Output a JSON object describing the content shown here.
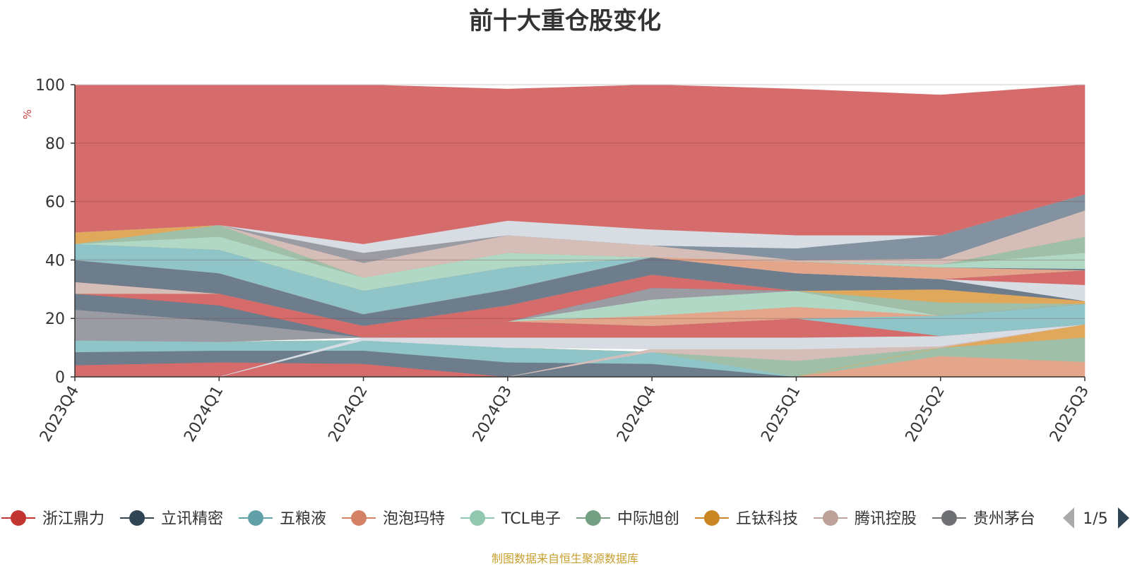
{
  "chart_data": {
    "type": "area",
    "title": "前十大重仓股变化",
    "ylabel": "%",
    "ylim": [
      0,
      100
    ],
    "yticks": [
      "0",
      "20",
      "40",
      "60",
      "80",
      "100"
    ],
    "categories": [
      "2023Q4",
      "2024Q1",
      "2024Q2",
      "2024Q3",
      "2024Q4",
      "2025Q1",
      "2025Q2",
      "2025Q3"
    ],
    "grid": true,
    "legend": {
      "position": "bottom",
      "page": "1/5",
      "items": [
        "浙江鼎力",
        "立讯精密",
        "五粮液",
        "泡泡玛特",
        "TCL电子",
        "中际旭创",
        "丘钛科技",
        "腾讯控股",
        "贵州茅台"
      ]
    },
    "layers": [
      {
        "color": "#d66b6b",
        "values": [
          [
            0,
            4
          ],
          [
            0,
            5
          ],
          [
            0,
            4.5
          ],
          [
            0,
            0
          ],
          [
            0,
            0
          ],
          [
            0,
            0
          ],
          [
            0,
            0
          ],
          [
            0,
            0
          ]
        ]
      },
      {
        "color": "#6d7d8c",
        "values": [
          [
            4,
            8.5
          ],
          [
            5,
            9
          ],
          [
            4.5,
            9
          ],
          [
            0,
            5
          ],
          [
            0,
            4.5
          ],
          [
            0,
            0
          ],
          [
            0,
            0
          ],
          [
            0,
            0
          ]
        ]
      },
      {
        "color": "#8fc4c8",
        "values": [
          [
            8.5,
            12.5
          ],
          [
            9,
            12
          ],
          [
            9,
            12.5
          ],
          [
            5,
            10
          ],
          [
            4.5,
            8.5
          ],
          [
            0,
            0
          ],
          [
            0,
            0
          ],
          [
            0,
            0
          ]
        ]
      },
      {
        "color": "#a0bfa8",
        "values": [
          [
            12.5,
            12.5
          ],
          [
            12,
            12
          ],
          [
            12.5,
            12.5
          ],
          [
            10,
            10
          ],
          [
            8.5,
            8.5
          ],
          [
            0,
            5.5
          ],
          [
            7,
            10
          ],
          [
            5,
            13.5
          ]
        ]
      },
      {
        "color": "#e3a68a",
        "values": [
          [
            0,
            0
          ],
          [
            0,
            0
          ],
          [
            0,
            0
          ],
          [
            0,
            0
          ],
          [
            0,
            0
          ],
          [
            0,
            0
          ],
          [
            0,
            7
          ],
          [
            0,
            5
          ]
        ]
      },
      {
        "color": "#b0d8c5",
        "values": [
          [
            0,
            0
          ],
          [
            0,
            0
          ],
          [
            0,
            0
          ],
          [
            0,
            0
          ],
          [
            0,
            0
          ],
          [
            0,
            0
          ],
          [
            0,
            0
          ],
          [
            0,
            0
          ]
        ]
      },
      {
        "color": "#e0a85a",
        "values": [
          [
            0,
            0
          ],
          [
            0,
            0
          ],
          [
            0,
            0
          ],
          [
            0,
            0
          ],
          [
            0,
            0
          ],
          [
            0,
            0
          ],
          [
            10,
            10
          ],
          [
            13.5,
            18
          ]
        ]
      },
      {
        "color": "#d5bdb8",
        "values": [
          [
            0,
            0
          ],
          [
            0,
            0
          ],
          [
            0,
            0
          ],
          [
            0,
            0
          ],
          [
            8.5,
            9.5
          ],
          [
            5.5,
            9.5
          ],
          [
            10,
            10.5
          ],
          [
            18,
            18
          ]
        ]
      },
      {
        "color": "#d7dde3",
        "values": [
          [
            0,
            0
          ],
          [
            0,
            0
          ],
          [
            12.5,
            13.5
          ],
          [
            10,
            13.5
          ],
          [
            9.5,
            13.5
          ],
          [
            9.5,
            13.5
          ],
          [
            10.5,
            14
          ],
          [
            18,
            18
          ]
        ]
      },
      {
        "color": "#9b9ba3",
        "values": [
          [
            12.5,
            23
          ],
          [
            12,
            19
          ],
          [
            13.5,
            13.5
          ],
          [
            13.5,
            13.5
          ],
          [
            13.5,
            13.5
          ],
          [
            13.5,
            13.5
          ],
          [
            14,
            14
          ],
          [
            18,
            18
          ]
        ]
      },
      {
        "color": "#d66b6b",
        "values": [
          [
            23,
            23
          ],
          [
            19,
            19
          ],
          [
            13.5,
            13.5
          ],
          [
            13.5,
            19
          ],
          [
            13.5,
            17.5
          ],
          [
            13.5,
            20
          ],
          [
            14,
            14
          ],
          [
            18,
            18
          ]
        ]
      },
      {
        "color": "#8fc4c8",
        "values": [
          [
            23,
            23
          ],
          [
            19,
            19
          ],
          [
            13.5,
            13.5
          ],
          [
            19,
            19
          ],
          [
            17.5,
            17.5
          ],
          [
            20,
            20
          ],
          [
            14,
            21
          ],
          [
            18,
            25
          ]
        ]
      },
      {
        "color": "#e3a68a",
        "values": [
          [
            23,
            23
          ],
          [
            19,
            19
          ],
          [
            13.5,
            13.5
          ],
          [
            19,
            19
          ],
          [
            17.5,
            21
          ],
          [
            20,
            24
          ],
          [
            21,
            21
          ],
          [
            25,
            25
          ]
        ]
      },
      {
        "color": "#b0d8c5",
        "values": [
          [
            23,
            23
          ],
          [
            19,
            19
          ],
          [
            13.5,
            13.5
          ],
          [
            19,
            19
          ],
          [
            21,
            26.5
          ],
          [
            24,
            29.5
          ],
          [
            21,
            21
          ],
          [
            25,
            25
          ]
        ]
      },
      {
        "color": "#9b9ba3",
        "values": [
          [
            23,
            23
          ],
          [
            19,
            19
          ],
          [
            13.5,
            13.5
          ],
          [
            19,
            19
          ],
          [
            26.5,
            30.5
          ],
          [
            29.5,
            29.5
          ],
          [
            21,
            21
          ],
          [
            25,
            25
          ]
        ]
      },
      {
        "color": "#6d7d8c",
        "values": [
          [
            23,
            28.5
          ],
          [
            19,
            24.5
          ],
          [
            13.5,
            13.5
          ],
          [
            19,
            19
          ],
          [
            30.5,
            30.5
          ],
          [
            29.5,
            29.5
          ],
          [
            21,
            21
          ],
          [
            25,
            25
          ]
        ]
      },
      {
        "color": "#d66b6b",
        "values": [
          [
            28.5,
            28.5
          ],
          [
            24.5,
            28.5
          ],
          [
            13.5,
            17.5
          ],
          [
            19,
            24.5
          ],
          [
            30.5,
            35
          ],
          [
            29.5,
            29.5
          ],
          [
            21,
            21
          ],
          [
            25,
            25
          ]
        ]
      },
      {
        "color": "#a0bfa8",
        "values": [
          [
            28.5,
            28.5
          ],
          [
            28.5,
            28.5
          ],
          [
            17.5,
            17.5
          ],
          [
            24.5,
            24.5
          ],
          [
            35,
            35
          ],
          [
            29.5,
            29.5
          ],
          [
            21,
            25.5
          ],
          [
            25,
            25
          ]
        ]
      },
      {
        "color": "#e0a85a",
        "values": [
          [
            28.5,
            28.5
          ],
          [
            28.5,
            28.5
          ],
          [
            17.5,
            17.5
          ],
          [
            24.5,
            24.5
          ],
          [
            35,
            35
          ],
          [
            29.5,
            29.5
          ],
          [
            25.5,
            30
          ],
          [
            25,
            26
          ]
        ]
      },
      {
        "color": "#d5bdb8",
        "values": [
          [
            28.5,
            32.5
          ],
          [
            28.5,
            28.5
          ],
          [
            17.5,
            17.5
          ],
          [
            24.5,
            24.5
          ],
          [
            35,
            35
          ],
          [
            29.5,
            29.5
          ],
          [
            30,
            30
          ],
          [
            26,
            26
          ]
        ]
      },
      {
        "color": "#d66b6b",
        "values": [
          [
            32.5,
            32.5
          ],
          [
            28.5,
            28.5
          ],
          [
            17.5,
            17.5
          ],
          [
            24.5,
            24.5
          ],
          [
            35,
            35
          ],
          [
            29.5,
            29.5
          ],
          [
            30,
            30
          ],
          [
            26,
            26
          ]
        ]
      },
      {
        "color": "#6d7d8c",
        "values": [
          [
            32.5,
            40
          ],
          [
            28.5,
            35.5
          ],
          [
            17.5,
            21.5
          ],
          [
            24.5,
            30
          ],
          [
            35,
            41
          ],
          [
            29.5,
            35.5
          ],
          [
            30,
            33.5
          ],
          [
            26,
            26
          ]
        ]
      },
      {
        "color": "#d7dde3",
        "values": [
          [
            40,
            40
          ],
          [
            35.5,
            35.5
          ],
          [
            21.5,
            21.5
          ],
          [
            30,
            30
          ],
          [
            41,
            41
          ],
          [
            35.5,
            35.5
          ],
          [
            33.5,
            33.5
          ],
          [
            26,
            31.5
          ]
        ]
      },
      {
        "color": "#d66b6b",
        "values": [
          [
            40,
            40
          ],
          [
            35.5,
            35.5
          ],
          [
            21.5,
            21.5
          ],
          [
            30,
            30
          ],
          [
            41,
            41
          ],
          [
            35.5,
            35.5
          ],
          [
            33.5,
            33.5
          ],
          [
            31.5,
            36.5
          ]
        ]
      },
      {
        "color": "#8fc4c8",
        "values": [
          [
            40,
            45.5
          ],
          [
            35.5,
            43.5
          ],
          [
            21.5,
            29.5
          ],
          [
            30,
            37.5
          ],
          [
            41,
            41
          ],
          [
            35.5,
            35.5
          ],
          [
            33.5,
            33.5
          ],
          [
            36.5,
            36.5
          ]
        ]
      },
      {
        "color": "#e3a68a",
        "values": [
          [
            45.5,
            45.5
          ],
          [
            43.5,
            43.5
          ],
          [
            29.5,
            29.5
          ],
          [
            37.5,
            37.5
          ],
          [
            41,
            41
          ],
          [
            35.5,
            39.5
          ],
          [
            33.5,
            37.5
          ],
          [
            36.5,
            36.5
          ]
        ]
      },
      {
        "color": "#6d7d8c",
        "values": [
          [
            45.5,
            45.5
          ],
          [
            43.5,
            43.5
          ],
          [
            29.5,
            29.5
          ],
          [
            37.5,
            37.5
          ],
          [
            41,
            41
          ],
          [
            39.5,
            39.5
          ],
          [
            37.5,
            37.5
          ],
          [
            36.5,
            37
          ]
        ]
      },
      {
        "color": "#b0d8c5",
        "values": [
          [
            45.5,
            45.5
          ],
          [
            43.5,
            48
          ],
          [
            29.5,
            34
          ],
          [
            37.5,
            42.5
          ],
          [
            41,
            41
          ],
          [
            39.5,
            39.5
          ],
          [
            37.5,
            38.5
          ],
          [
            37,
            42.5
          ]
        ]
      },
      {
        "color": "#a0bfa8",
        "values": [
          [
            45.5,
            45.5
          ],
          [
            48,
            52
          ],
          [
            34,
            34
          ],
          [
            42.5,
            42.5
          ],
          [
            41,
            41
          ],
          [
            39.5,
            39.5
          ],
          [
            38.5,
            38.5
          ],
          [
            42.5,
            48
          ]
        ]
      },
      {
        "color": "#e0a85a",
        "values": [
          [
            45.5,
            49.5
          ],
          [
            52,
            52
          ],
          [
            34,
            34
          ],
          [
            42.5,
            42.5
          ],
          [
            41,
            41
          ],
          [
            39.5,
            39.5
          ],
          [
            38.5,
            38.5
          ],
          [
            48,
            48
          ]
        ]
      },
      {
        "color": "#d5bdb8",
        "values": [
          [
            49.5,
            49.5
          ],
          [
            52,
            52
          ],
          [
            34,
            39
          ],
          [
            42.5,
            48.5
          ],
          [
            41,
            45
          ],
          [
            39.5,
            40
          ],
          [
            38.5,
            40.5
          ],
          [
            48,
            57
          ]
        ]
      },
      {
        "color": "#9b9ba3",
        "values": [
          [
            49.5,
            49.5
          ],
          [
            52,
            52
          ],
          [
            39,
            42.5
          ],
          [
            48.5,
            48.5
          ],
          [
            45,
            45
          ],
          [
            40,
            40
          ],
          [
            40.5,
            40.5
          ],
          [
            57,
            57
          ]
        ]
      },
      {
        "color": "#8292a0",
        "values": [
          [
            49.5,
            49.5
          ],
          [
            52,
            52
          ],
          [
            42.5,
            42.5
          ],
          [
            48.5,
            48.5
          ],
          [
            45,
            45
          ],
          [
            40,
            44
          ],
          [
            40.5,
            48.5
          ],
          [
            57,
            62.5
          ]
        ]
      },
      {
        "color": "#d7dde3",
        "values": [
          [
            49.5,
            49.5
          ],
          [
            52,
            52
          ],
          [
            42.5,
            45.5
          ],
          [
            48.5,
            53.5
          ],
          [
            45,
            50.5
          ],
          [
            44,
            48.5
          ],
          [
            48.5,
            48.5
          ],
          [
            62.5,
            62.5
          ]
        ]
      },
      {
        "color": "#d66b6b",
        "values": [
          [
            49.5,
            100
          ],
          [
            52,
            100
          ],
          [
            45.5,
            100
          ],
          [
            53.5,
            98.5
          ],
          [
            50.5,
            100
          ],
          [
            48.5,
            98.5
          ],
          [
            48.5,
            96.5
          ],
          [
            62.5,
            100
          ]
        ]
      }
    ]
  },
  "legend_colors": [
    "#c23531",
    "#2f4554",
    "#61a0a8",
    "#d48265",
    "#91c7ae",
    "#749f83",
    "#ca8622",
    "#bda29a",
    "#6e7074"
  ],
  "footer": {
    "source": "制图数据来自恒生聚源数据库"
  }
}
